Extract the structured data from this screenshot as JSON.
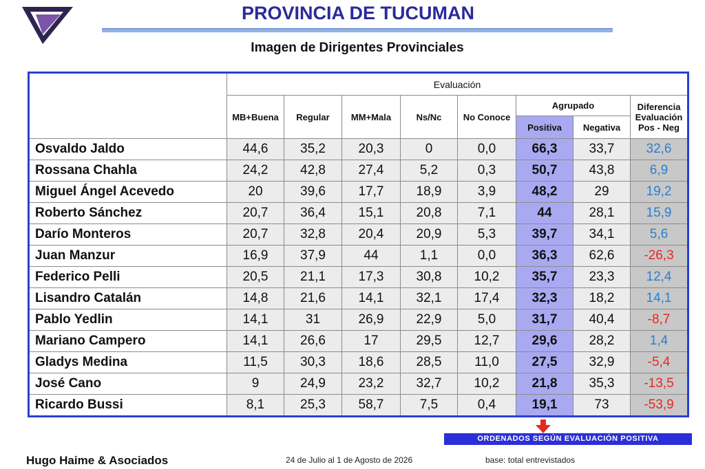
{
  "header": {
    "title": "PROVINCIA DE TUCUMAN",
    "subtitle": "Imagen de Dirigentes Provinciales"
  },
  "table": {
    "group_header": "Evaluación",
    "columns": [
      "MB+Buena",
      "Regular",
      "MM+Mala",
      "Ns/Nc",
      "No Conoce"
    ],
    "grouped_header": "Agrupado",
    "grouped_columns": [
      "Positiva",
      "Negativa"
    ],
    "difference_header": [
      "Diferencia",
      "Evaluación",
      "Pos - Neg"
    ],
    "rows": [
      [
        "Osvaldo Jaldo",
        "44,6",
        "35,2",
        "20,3",
        "0",
        "0,0",
        "66,3",
        "33,7",
        "32,6"
      ],
      [
        "Rossana Chahla",
        "24,2",
        "42,8",
        "27,4",
        "5,2",
        "0,3",
        "50,7",
        "43,8",
        "6,9"
      ],
      [
        "Miguel Ángel Acevedo",
        "20",
        "39,6",
        "17,7",
        "18,9",
        "3,9",
        "48,2",
        "29",
        "19,2"
      ],
      [
        "Roberto Sánchez",
        "20,7",
        "36,4",
        "15,1",
        "20,8",
        "7,1",
        "44",
        "28,1",
        "15,9"
      ],
      [
        "Darío Monteros",
        "20,7",
        "32,8",
        "20,4",
        "20,9",
        "5,3",
        "39,7",
        "34,1",
        "5,6"
      ],
      [
        "Juan Manzur",
        "16,9",
        "37,9",
        "44",
        "1,1",
        "0,0",
        "36,3",
        "62,6",
        "-26,3"
      ],
      [
        "Federico Pelli",
        "20,5",
        "21,1",
        "17,3",
        "30,8",
        "10,2",
        "35,7",
        "23,3",
        "12,4"
      ],
      [
        "Lisandro Catalán",
        "14,8",
        "21,6",
        "14,1",
        "32,1",
        "17,4",
        "32,3",
        "18,2",
        "14,1"
      ],
      [
        "Pablo Yedlin",
        "14,1",
        "31",
        "26,9",
        "22,9",
        "5,0",
        "31,7",
        "40,4",
        "-8,7"
      ],
      [
        "Mariano Campero",
        "14,1",
        "26,6",
        "17",
        "29,5",
        "12,7",
        "29,6",
        "28,2",
        "1,4"
      ],
      [
        "Gladys Medina",
        "11,5",
        "30,3",
        "18,6",
        "28,5",
        "11,0",
        "27,5",
        "32,9",
        "-5,4"
      ],
      [
        "José Cano",
        "9",
        "24,9",
        "23,2",
        "32,7",
        "10,2",
        "21,8",
        "35,3",
        "-13,5"
      ],
      [
        "Ricardo Bussi",
        "8,1",
        "25,3",
        "58,7",
        "7,5",
        "0,4",
        "19,1",
        "73",
        "-53,9"
      ]
    ]
  },
  "footer": {
    "note": "ORDENADOS SEGÚN  EVALUACIÓN  POSITIVA",
    "company": "Hugo Haime & Asociados",
    "dates": "24 de Julio al 1 de Agosto de 2026",
    "base": "base: total entrevistados"
  }
}
